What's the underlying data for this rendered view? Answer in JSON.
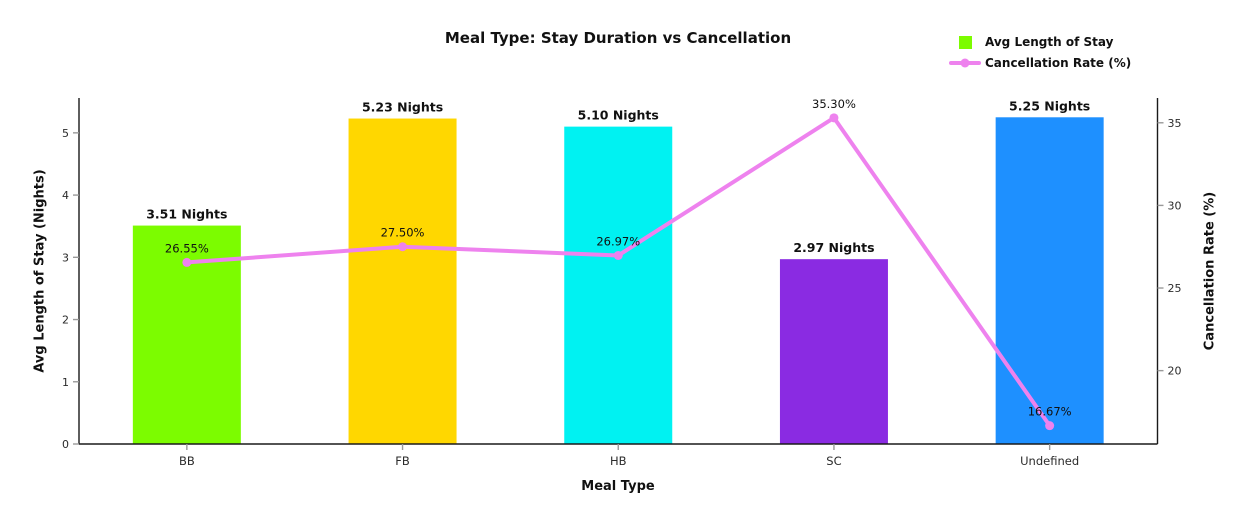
{
  "chart_data": {
    "type": "bar",
    "subtype": "combo-bar-line",
    "title": "Meal Type: Stay Duration vs Cancellation",
    "xlabel": "Meal Type",
    "ylabel_left": "Avg Length of Stay (Nights)",
    "ylabel_right": "Cancellation Rate (%)",
    "categories": [
      "BB",
      "FB",
      "HB",
      "SC",
      "Undefined"
    ],
    "series": [
      {
        "name": "Avg Length of Stay",
        "type": "bar",
        "axis": "left",
        "values": [
          3.51,
          5.23,
          5.1,
          2.97,
          5.25
        ],
        "labels": [
          "3.51 Nights",
          "5.23 Nights",
          "5.10 Nights",
          "2.97 Nights",
          "5.25 Nights"
        ],
        "colors": [
          "#7CFC00",
          "#FFD700",
          "#00F2F2",
          "#8A2BE2",
          "#1E90FF"
        ]
      },
      {
        "name": "Cancellation Rate (%)",
        "type": "line",
        "axis": "right",
        "values": [
          26.55,
          27.5,
          26.97,
          35.3,
          16.67
        ],
        "labels": [
          "26.55%",
          "27.50%",
          "26.97%",
          "35.30%",
          "16.67%"
        ],
        "color": "#EE82EE"
      }
    ],
    "yticks_left": [
      0,
      1,
      2,
      3,
      4,
      5
    ],
    "yticks_right": [
      20,
      25,
      30,
      35
    ],
    "ylim_left": [
      0,
      5.56
    ],
    "ylim_right": [
      15.56,
      36.5
    ],
    "grid": false,
    "legend_position": "top-right",
    "colors": {
      "line": "#EE82EE",
      "legend_bar_swatch": "#7CFC00",
      "spine": "#1a1a1a",
      "tick": "#999999",
      "tick_label": "#2b2b2b",
      "text": "#111111"
    }
  }
}
